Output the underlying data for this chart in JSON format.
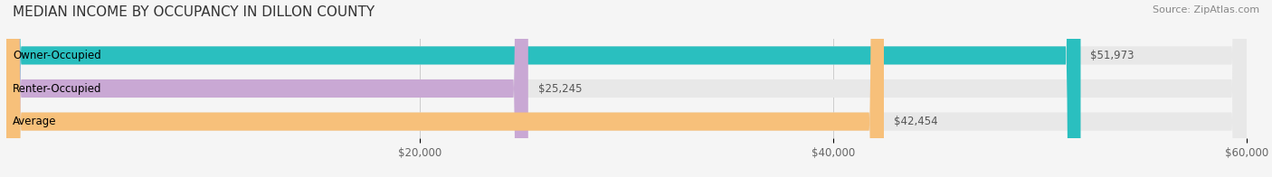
{
  "title": "MEDIAN INCOME BY OCCUPANCY IN DILLON COUNTY",
  "source": "Source: ZipAtlas.com",
  "categories": [
    "Owner-Occupied",
    "Renter-Occupied",
    "Average"
  ],
  "values": [
    51973,
    25245,
    42454
  ],
  "bar_colors": [
    "#2abfbf",
    "#c9a8d4",
    "#f7c07a"
  ],
  "bar_bg_color": "#e8e8e8",
  "value_labels": [
    "$51,973",
    "$25,245",
    "$42,454"
  ],
  "xlim": [
    0,
    60000
  ],
  "xticks": [
    20000,
    40000,
    60000
  ],
  "xtick_labels": [
    "$20,000",
    "$40,000",
    "$60,000"
  ],
  "title_fontsize": 11,
  "label_fontsize": 8.5,
  "value_fontsize": 8.5,
  "source_fontsize": 8,
  "background_color": "#f5f5f5"
}
